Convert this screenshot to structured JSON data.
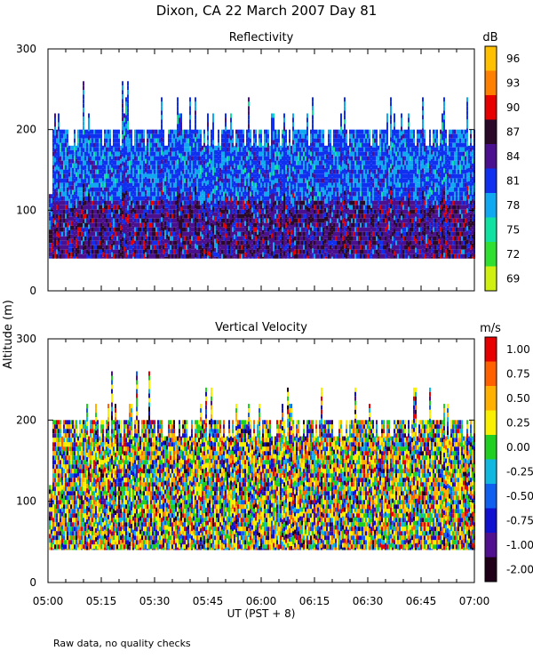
{
  "page_title": "Dixon, CA 22 March 2007  Day  81",
  "shared": {
    "ylabel": "Altitude (m)",
    "xlabel": "UT  (PST + 8)",
    "x_ticks": [
      "05:00",
      "05:15",
      "05:30",
      "05:45",
      "06:00",
      "06:15",
      "06:30",
      "06:45",
      "07:00"
    ],
    "y_ticks": [
      0,
      100,
      200,
      300
    ],
    "ylim": [
      0,
      300
    ],
    "xlim_hours_ut": [
      5.0,
      7.0
    ]
  },
  "footnote": "Raw data, no quality checks",
  "chart_data": [
    {
      "type": "heatmap",
      "title": "Reflectivity",
      "colorbar": {
        "unit": "dB",
        "labels": [
          "96",
          "93",
          "90",
          "87",
          "84",
          "81",
          "78",
          "75",
          "72",
          "69"
        ],
        "range": [
          69,
          99
        ],
        "colors": [
          "#ffc000",
          "#ff8000",
          "#e80000",
          "#2a0a28",
          "#4a1090",
          "#1030f0",
          "#10a8f0",
          "#10e0a0",
          "#30e030",
          "#d0f010"
        ]
      },
      "data_extent": {
        "altitude_bottom_m": 40,
        "altitude_top_typical_m": 200,
        "altitude_top_max_m": 260
      }
    },
    {
      "type": "heatmap",
      "title": "Vertical Velocity",
      "colorbar": {
        "unit": "m/s",
        "labels": [
          "1.00",
          "0.75",
          "0.50",
          "0.25",
          "0.00",
          "-0.25",
          "-0.50",
          "-0.75",
          "-1.00",
          "-2.00"
        ],
        "range": [
          -2.0,
          1.25
        ],
        "colors": [
          "#e80000",
          "#ff6000",
          "#ffb000",
          "#f8f000",
          "#20d020",
          "#10b8e0",
          "#1060f0",
          "#1010d0",
          "#501090",
          "#200018"
        ]
      },
      "data_extent": {
        "altitude_bottom_m": 40,
        "altitude_top_typical_m": 200,
        "altitude_top_max_m": 260
      }
    }
  ]
}
